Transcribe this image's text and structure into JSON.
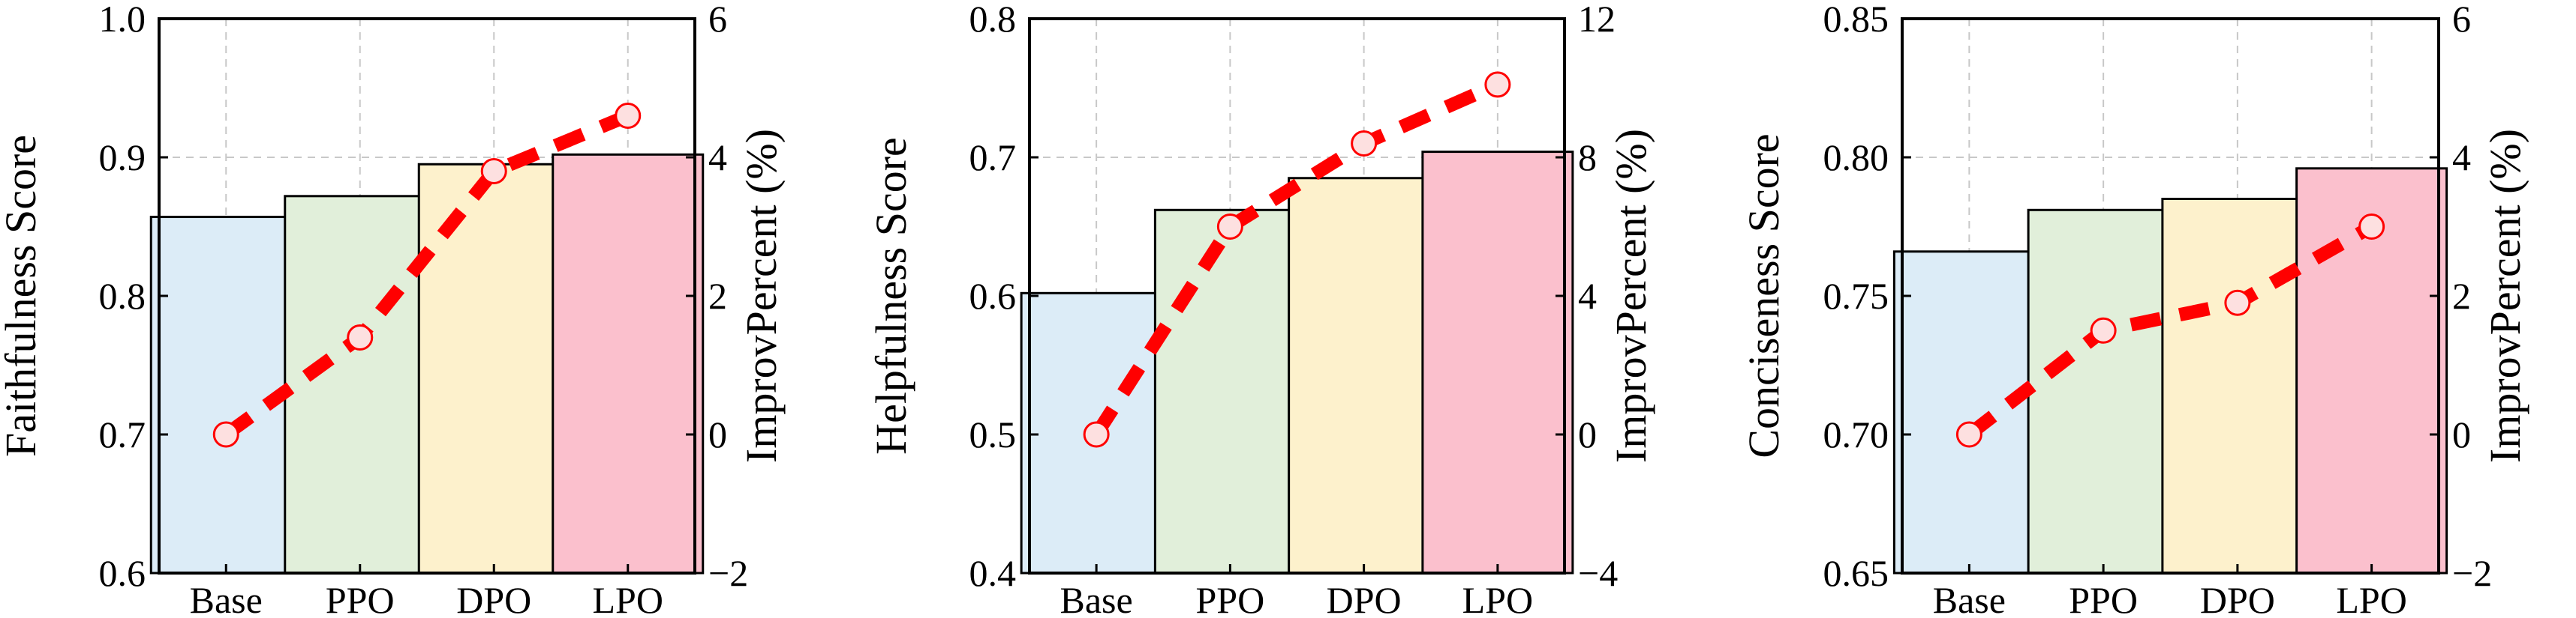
{
  "colors": {
    "bars": [
      "#dcecf7",
      "#e1efda",
      "#fdf1cc",
      "#fbc0cd"
    ],
    "line": "#ff0000",
    "grid": "#c8c8c8"
  },
  "chart_data": [
    {
      "type": "bar",
      "categories": [
        "Base",
        "PPO",
        "DPO",
        "LPO"
      ],
      "values": [
        0.857,
        0.872,
        0.895,
        0.902
      ],
      "ylabel": "Faithfulness Score",
      "ylim": [
        0.6,
        1.0
      ],
      "yticks": [
        "0.6",
        "0.7",
        "0.8",
        "0.9",
        "1.0"
      ],
      "y2label": "ImprovPercent (%)",
      "y2lim": [
        -2,
        6
      ],
      "y2ticks": [
        "−2",
        "0",
        "2",
        "4",
        "6"
      ],
      "line_values": [
        0.0,
        1.4,
        3.8,
        4.6
      ],
      "grid": true
    },
    {
      "type": "bar",
      "categories": [
        "Base",
        "PPO",
        "DPO",
        "LPO"
      ],
      "values": [
        0.602,
        0.662,
        0.685,
        0.704
      ],
      "ylabel": "Helpfulness Score",
      "ylim": [
        0.4,
        0.8
      ],
      "yticks": [
        "0.4",
        "0.5",
        "0.6",
        "0.7",
        "0.8"
      ],
      "y2label": "ImprovPercent (%)",
      "y2lim": [
        -4,
        12
      ],
      "y2ticks": [
        "−4",
        "0",
        "4",
        "8",
        "12"
      ],
      "line_values": [
        0.0,
        6.0,
        8.4,
        10.1
      ],
      "grid": true
    },
    {
      "type": "bar",
      "categories": [
        "Base",
        "PPO",
        "DPO",
        "LPO"
      ],
      "values": [
        0.766,
        0.781,
        0.785,
        0.796
      ],
      "ylabel": "Conciseness Score",
      "ylim": [
        0.65,
        0.85
      ],
      "yticks": [
        "0.65",
        "0.70",
        "0.75",
        "0.80",
        "0.85"
      ],
      "y2label": "ImprovPercent (%)",
      "y2lim": [
        -2,
        6
      ],
      "y2ticks": [
        "−2",
        "0",
        "2",
        "4",
        "6"
      ],
      "line_values": [
        0.0,
        1.5,
        1.9,
        3.0
      ],
      "grid": true
    }
  ]
}
